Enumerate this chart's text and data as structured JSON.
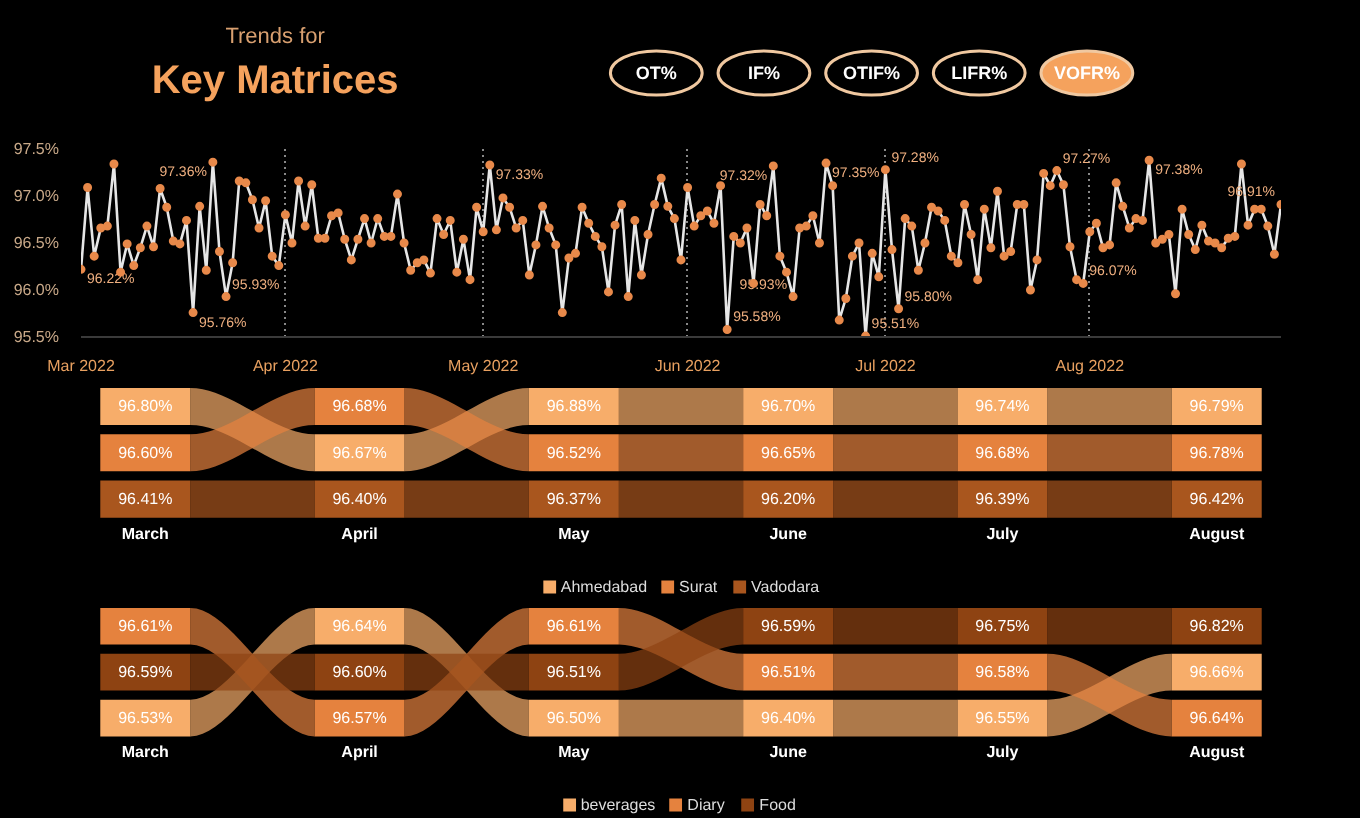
{
  "chart_data": [
    {
      "type": "line",
      "subtitle": "Trends for",
      "title": "Key Matrices",
      "grid": "x",
      "marker": "circle",
      "line_style": "solid",
      "x": [
        "2022-03-01",
        "2022-03-02",
        "2022-03-03",
        "2022-03-04",
        "2022-03-05",
        "2022-03-06",
        "2022-03-07",
        "2022-03-08",
        "2022-03-09",
        "2022-03-10",
        "2022-03-11",
        "2022-03-12",
        "2022-03-13",
        "2022-03-14",
        "2022-03-15",
        "2022-03-16",
        "2022-03-17",
        "2022-03-18",
        "2022-03-19",
        "2022-03-20",
        "2022-03-21",
        "2022-03-22",
        "2022-03-23",
        "2022-03-24",
        "2022-03-25",
        "2022-03-26",
        "2022-03-27",
        "2022-03-28",
        "2022-03-29",
        "2022-03-30",
        "2022-03-31",
        "2022-04-01",
        "2022-04-02",
        "2022-04-03",
        "2022-04-04",
        "2022-04-05",
        "2022-04-06",
        "2022-04-07",
        "2022-04-08",
        "2022-04-09",
        "2022-04-10",
        "2022-04-11",
        "2022-04-12",
        "2022-04-13",
        "2022-04-14",
        "2022-04-15",
        "2022-04-16",
        "2022-04-17",
        "2022-04-18",
        "2022-04-19",
        "2022-04-20",
        "2022-04-21",
        "2022-04-22",
        "2022-04-23",
        "2022-04-24",
        "2022-04-25",
        "2022-04-26",
        "2022-04-27",
        "2022-04-28",
        "2022-04-29",
        "2022-04-30",
        "2022-05-01",
        "2022-05-02",
        "2022-05-03",
        "2022-05-04",
        "2022-05-05",
        "2022-05-06",
        "2022-05-07",
        "2022-05-08",
        "2022-05-09",
        "2022-05-10",
        "2022-05-11",
        "2022-05-12",
        "2022-05-13",
        "2022-05-14",
        "2022-05-15",
        "2022-05-16",
        "2022-05-17",
        "2022-05-18",
        "2022-05-19",
        "2022-05-20",
        "2022-05-21",
        "2022-05-22",
        "2022-05-23",
        "2022-05-24",
        "2022-05-25",
        "2022-05-26",
        "2022-05-27",
        "2022-05-28",
        "2022-05-29",
        "2022-05-30",
        "2022-05-31",
        "2022-06-01",
        "2022-06-02",
        "2022-06-03",
        "2022-06-04",
        "2022-06-05",
        "2022-06-06",
        "2022-06-07",
        "2022-06-08",
        "2022-06-09",
        "2022-06-10",
        "2022-06-11",
        "2022-06-12",
        "2022-06-13",
        "2022-06-14",
        "2022-06-15",
        "2022-06-16",
        "2022-06-17",
        "2022-06-18",
        "2022-06-19",
        "2022-06-20",
        "2022-06-21",
        "2022-06-22",
        "2022-06-23",
        "2022-06-24",
        "2022-06-25",
        "2022-06-26",
        "2022-06-27",
        "2022-06-28",
        "2022-06-29",
        "2022-06-30",
        "2022-07-01",
        "2022-07-02",
        "2022-07-03",
        "2022-07-04",
        "2022-07-05",
        "2022-07-06",
        "2022-07-07",
        "2022-07-08",
        "2022-07-09",
        "2022-07-10",
        "2022-07-11",
        "2022-07-12",
        "2022-07-13",
        "2022-07-14",
        "2022-07-15",
        "2022-07-16",
        "2022-07-17",
        "2022-07-18",
        "2022-07-19",
        "2022-07-20",
        "2022-07-21",
        "2022-07-22",
        "2022-07-23",
        "2022-07-24",
        "2022-07-25",
        "2022-07-26",
        "2022-07-27",
        "2022-07-28",
        "2022-07-29",
        "2022-07-30",
        "2022-07-31",
        "2022-08-01",
        "2022-08-02",
        "2022-08-03",
        "2022-08-04",
        "2022-08-05",
        "2022-08-06",
        "2022-08-07",
        "2022-08-08",
        "2022-08-09",
        "2022-08-10",
        "2022-08-11",
        "2022-08-12",
        "2022-08-13",
        "2022-08-14",
        "2022-08-15",
        "2022-08-16",
        "2022-08-17",
        "2022-08-18",
        "2022-08-19",
        "2022-08-20",
        "2022-08-21",
        "2022-08-22",
        "2022-08-23",
        "2022-08-24",
        "2022-08-25",
        "2022-08-26",
        "2022-08-27",
        "2022-08-28",
        "2022-08-29",
        "2022-08-30"
      ],
      "series": [
        {
          "color": "#e8894a",
          "values": [
            96.22,
            97.09,
            96.36,
            96.66,
            96.68,
            97.34,
            96.19,
            96.49,
            96.26,
            96.45,
            96.68,
            96.46,
            97.08,
            96.88,
            96.52,
            96.49,
            96.74,
            95.76,
            96.89,
            96.21,
            97.36,
            96.41,
            95.93,
            96.29,
            97.16,
            97.14,
            96.96,
            96.66,
            96.95,
            96.36,
            96.26,
            96.8,
            96.5,
            97.16,
            96.68,
            97.12,
            96.55,
            96.55,
            96.79,
            96.82,
            96.54,
            96.32,
            96.54,
            96.76,
            96.5,
            96.76,
            96.57,
            96.57,
            97.02,
            96.5,
            96.21,
            96.29,
            96.32,
            96.18,
            96.76,
            96.59,
            96.74,
            96.19,
            96.54,
            96.11,
            96.88,
            96.62,
            97.33,
            96.64,
            96.98,
            96.88,
            96.66,
            96.74,
            96.16,
            96.48,
            96.89,
            96.66,
            96.48,
            95.76,
            96.34,
            96.39,
            96.88,
            96.71,
            96.57,
            96.46,
            95.98,
            96.69,
            96.91,
            95.93,
            96.74,
            96.16,
            96.59,
            96.91,
            97.19,
            96.89,
            96.76,
            96.32,
            97.09,
            96.68,
            96.79,
            96.84,
            96.71,
            97.11,
            95.58,
            96.57,
            96.5,
            96.66,
            96.07,
            96.91,
            96.79,
            97.32,
            96.36,
            96.19,
            95.93,
            96.66,
            96.68,
            96.79,
            96.5,
            97.35,
            97.11,
            95.68,
            95.91,
            96.36,
            96.5,
            95.51,
            96.39,
            96.14,
            97.28,
            96.43,
            95.8,
            96.76,
            96.68,
            96.21,
            96.5,
            96.88,
            96.84,
            96.74,
            96.36,
            96.29,
            96.91,
            96.59,
            96.11,
            96.86,
            96.45,
            97.05,
            96.36,
            96.41,
            96.91,
            96.91,
            96.0,
            96.32,
            97.24,
            97.11,
            97.27,
            97.12,
            96.46,
            96.11,
            96.07,
            96.62,
            96.71,
            96.45,
            96.48,
            97.14,
            96.89,
            96.66,
            96.76,
            96.74,
            97.38,
            96.5,
            96.54,
            96.59,
            95.96,
            96.86,
            96.59,
            96.43,
            96.69,
            96.52,
            96.5,
            96.45,
            96.55,
            96.57,
            97.34,
            96.69,
            96.86,
            96.86,
            96.68,
            96.38,
            96.91
          ]
        }
      ],
      "ylim": [
        95.5,
        97.5
      ],
      "yticks": [
        {
          "value": 95.5,
          "label": "95.5%"
        },
        {
          "value": 96.0,
          "label": "96.0%"
        },
        {
          "value": 96.5,
          "label": "96.5%"
        },
        {
          "value": 97.0,
          "label": "97.0%"
        },
        {
          "value": 97.5,
          "label": "97.5%"
        }
      ],
      "xlim": [
        "2022-03-01",
        "2022-08-30"
      ],
      "xticks": [
        {
          "value": "2022-03-01",
          "label": "Mar 2022"
        },
        {
          "value": "2022-04-01",
          "label": "Apr 2022"
        },
        {
          "value": "2022-05-01",
          "label": "May 2022"
        },
        {
          "value": "2022-06-01",
          "label": "Jun 2022"
        },
        {
          "value": "2022-07-01",
          "label": "Jul 2022"
        },
        {
          "value": "2022-08-01",
          "label": "Aug 2022"
        }
      ],
      "annotations": [
        {
          "text": "96.22%",
          "x": "2022-03-01",
          "y": 96.22
        },
        {
          "text": "95.76%",
          "x": "2022-03-18",
          "y": 95.76
        },
        {
          "text": "97.36%",
          "x": "2022-03-21",
          "y": 97.36
        },
        {
          "text": "95.93%",
          "x": "2022-03-23",
          "y": 95.93
        },
        {
          "text": "97.33%",
          "x": "2022-05-02",
          "y": 97.33
        },
        {
          "text": "95.58%",
          "x": "2022-06-07",
          "y": 95.58
        },
        {
          "text": "97.32%",
          "x": "2022-06-14",
          "y": 97.32
        },
        {
          "text": "95.93%",
          "x": "2022-06-17",
          "y": 95.93
        },
        {
          "text": "97.35%",
          "x": "2022-06-22",
          "y": 97.35
        },
        {
          "text": "95.51%",
          "x": "2022-06-28",
          "y": 95.51
        },
        {
          "text": "97.28%",
          "x": "2022-07-01",
          "y": 97.28
        },
        {
          "text": "95.80%",
          "x": "2022-07-03",
          "y": 95.8
        },
        {
          "text": "97.27%",
          "x": "2022-07-27",
          "y": 97.27
        },
        {
          "text": "96.07%",
          "x": "2022-07-31",
          "y": 96.07
        },
        {
          "text": "97.38%",
          "x": "2022-08-10",
          "y": 97.38
        },
        {
          "text": "96.91%",
          "x": "2022-08-30",
          "y": 96.91
        }
      ]
    },
    {
      "type": "other",
      "categories": [
        "OT%",
        "IF%",
        "OTIF%",
        "LIFR%",
        "VOFR%"
      ],
      "colors": [
        "#000000",
        "#000000",
        "#000000",
        "#000000",
        "#f5a25d"
      ]
    },
    {
      "type": "other",
      "categories": [
        "March",
        "April",
        "May",
        "June",
        "July",
        "August"
      ],
      "legend": "bottom",
      "data_labels": true,
      "series": [
        {
          "name": "Ahmedabad",
          "color": "#f7ad6a",
          "values": [
            96.8,
            96.67,
            96.88,
            96.7,
            96.74,
            96.79
          ],
          "value_labels": [
            "96.80%",
            "96.67%",
            "96.88%",
            "96.70%",
            "96.74%",
            "96.79%"
          ]
        },
        {
          "name": "Surat",
          "color": "#e5823e",
          "values": [
            96.6,
            96.68,
            96.52,
            96.65,
            96.68,
            96.78
          ],
          "value_labels": [
            "96.60%",
            "96.68%",
            "96.52%",
            "96.65%",
            "96.68%",
            "96.78%"
          ]
        },
        {
          "name": "Vadodara",
          "color": "#a9561e",
          "values": [
            96.41,
            96.4,
            96.37,
            96.2,
            96.39,
            96.42
          ],
          "value_labels": [
            "96.41%",
            "96.40%",
            "96.37%",
            "96.20%",
            "96.39%",
            "96.42%"
          ]
        }
      ]
    },
    {
      "type": "other",
      "categories": [
        "March",
        "April",
        "May",
        "June",
        "July",
        "August"
      ],
      "legend": "bottom",
      "data_labels": true,
      "series": [
        {
          "name": "beverages",
          "color": "#f7ad6a",
          "values": [
            96.53,
            96.64,
            96.5,
            96.4,
            96.55,
            96.66
          ],
          "value_labels": [
            "96.53%",
            "96.64%",
            "96.50%",
            "96.40%",
            "96.55%",
            "96.66%"
          ]
        },
        {
          "name": "Diary",
          "color": "#e5823e",
          "values": [
            96.61,
            96.57,
            96.61,
            96.51,
            96.58,
            96.64
          ],
          "value_labels": [
            "96.61%",
            "96.57%",
            "96.61%",
            "96.51%",
            "96.58%",
            "96.64%"
          ]
        },
        {
          "name": "Food",
          "color": "#8e4312",
          "values": [
            96.59,
            96.6,
            96.51,
            96.59,
            96.75,
            96.82
          ],
          "value_labels": [
            "96.59%",
            "96.60%",
            "96.51%",
            "96.59%",
            "96.75%",
            "96.82%"
          ]
        }
      ]
    }
  ]
}
